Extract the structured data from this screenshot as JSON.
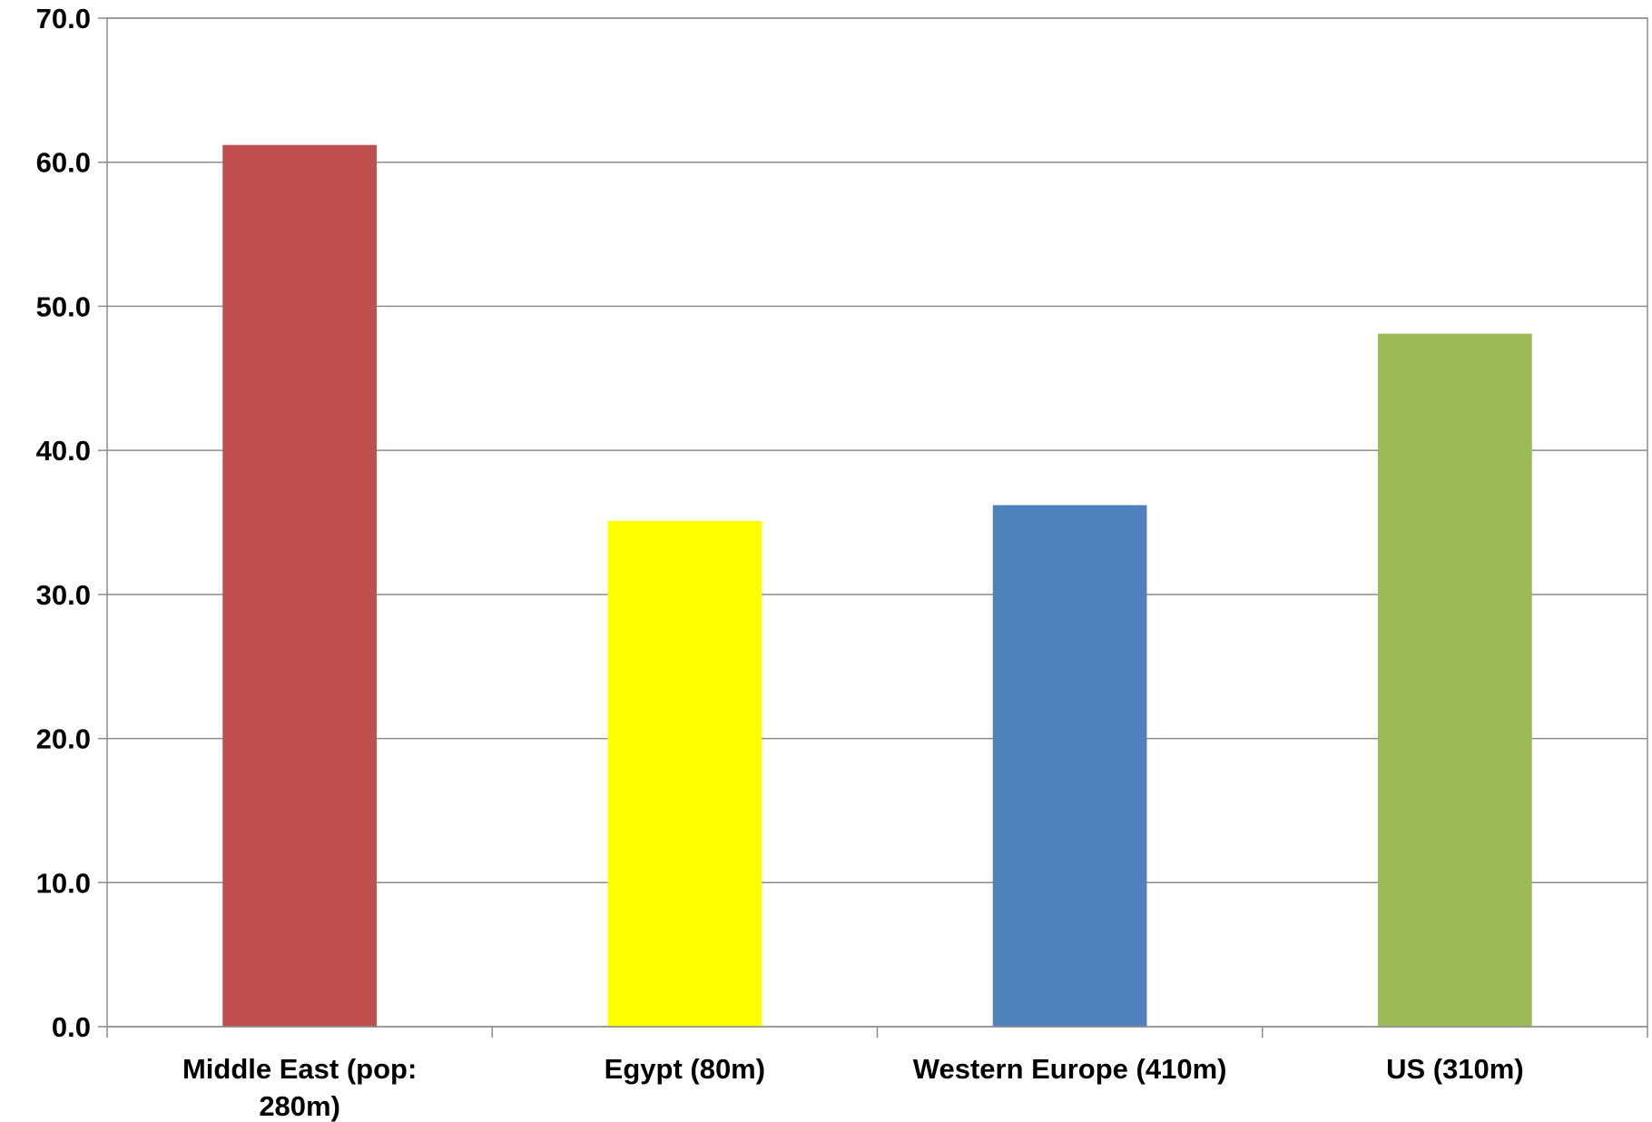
{
  "chart_data": {
    "type": "bar",
    "categories": [
      [
        "Middle East (pop:",
        "280m)"
      ],
      [
        "Egypt (80m)"
      ],
      [
        "Western Europe (410m)"
      ],
      [
        "US (310m)"
      ]
    ],
    "values": [
      61.2,
      35.1,
      36.2,
      48.1
    ],
    "colors": [
      "#c0504d",
      "#ffff00",
      "#4f81bd",
      "#9bbb59"
    ],
    "title": "",
    "xlabel": "",
    "ylabel": "",
    "ylim": [
      0,
      70
    ],
    "yticks": [
      "0.0",
      "10.0",
      "20.0",
      "30.0",
      "40.0",
      "50.0",
      "60.0",
      "70.0"
    ],
    "grid": true,
    "legend": "none"
  }
}
